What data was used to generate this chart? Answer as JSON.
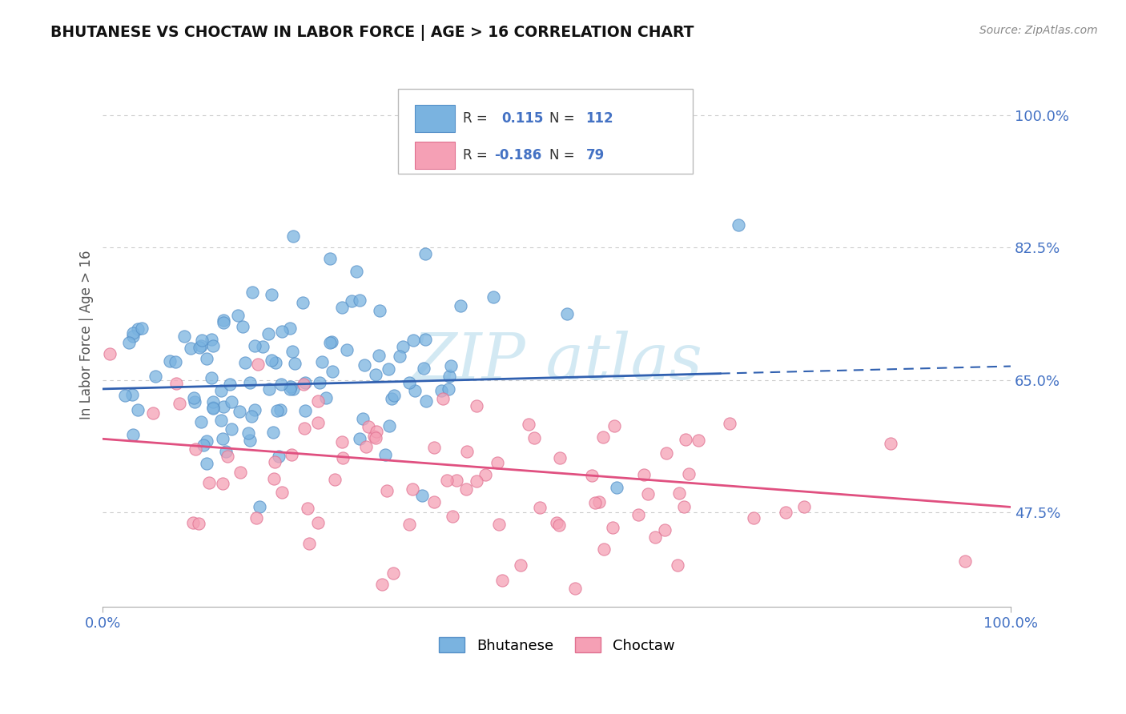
{
  "title": "BHUTANESE VS CHOCTAW IN LABOR FORCE | AGE > 16 CORRELATION CHART",
  "source_text": "Source: ZipAtlas.com",
  "ylabel": "In Labor Force | Age > 16",
  "xlim": [
    0.0,
    1.0
  ],
  "ylim": [
    0.35,
    1.07
  ],
  "x_tick_labels": [
    "0.0%",
    "100.0%"
  ],
  "y_tick_values": [
    0.475,
    0.65,
    0.825,
    1.0
  ],
  "y_tick_labels": [
    "47.5%",
    "65.0%",
    "82.5%",
    "100.0%"
  ],
  "bhutanese_color": "#7ab3e0",
  "bhutanese_edge_color": "#5590c8",
  "choctaw_color": "#f5a0b5",
  "choctaw_edge_color": "#e07090",
  "bhutanese_R": 0.115,
  "bhutanese_N": 112,
  "choctaw_R": -0.186,
  "choctaw_N": 79,
  "watermark_color": "#b0d8ea",
  "grid_color": "#cccccc",
  "background_color": "#ffffff",
  "bhutanese_line_color": "#3060b0",
  "choctaw_line_color": "#e05080",
  "bhutanese_line_start_x": 0.0,
  "bhutanese_line_start_y": 0.638,
  "bhutanese_line_solid_end_x": 0.68,
  "bhutanese_line_end_x": 1.0,
  "bhutanese_line_end_y": 0.668,
  "choctaw_line_start_x": 0.0,
  "choctaw_line_start_y": 0.572,
  "choctaw_line_end_x": 1.0,
  "choctaw_line_end_y": 0.482,
  "tick_color": "#4472c4",
  "label_color": "#555555"
}
